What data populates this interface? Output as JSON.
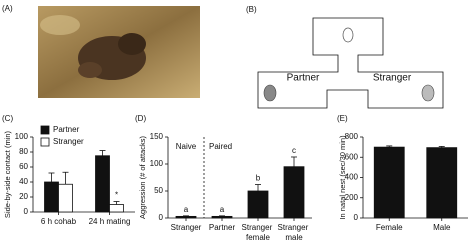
{
  "figure": {
    "panel_labels": [
      "(A)",
      "(B)",
      "(C)",
      "(D)",
      "(E)"
    ],
    "diagram": {
      "labels": [
        "Partner",
        "Stranger"
      ]
    }
  },
  "chart_data": [
    {
      "type": "bar",
      "y_label": "Side-by-side contact (min)",
      "categories": [
        "6 h cohab",
        "24 h mating"
      ],
      "series": [
        {
          "name": "Partner",
          "color": "#111111",
          "values": [
            40,
            75
          ],
          "errors": [
            12,
            7
          ]
        },
        {
          "name": "Stranger",
          "color": "#ffffff",
          "values": [
            37,
            10
          ],
          "errors": [
            16,
            4
          ],
          "markers": [
            null,
            "*"
          ]
        }
      ],
      "ylim": [
        0,
        100
      ],
      "yticks": [
        0,
        20,
        40,
        60,
        80,
        100
      ],
      "legend": "upper left"
    },
    {
      "type": "bar",
      "y_label": "Aggression (# of attacks)",
      "categories": [
        "Stranger",
        "Partner",
        "Stranger female",
        "Stranger male"
      ],
      "group_labels": [
        "Naive",
        "Paired"
      ],
      "series": [
        {
          "color": "#111111",
          "values": [
            3,
            3,
            50,
            95
          ],
          "errors": [
            1,
            1,
            12,
            18
          ],
          "markers": [
            "a",
            "a",
            "b",
            "c"
          ]
        }
      ],
      "ylim": [
        0,
        150
      ],
      "yticks": [
        0,
        50,
        100,
        150
      ]
    },
    {
      "type": "bar",
      "y_label": "In natal nest (sec/30 min)",
      "categories": [
        "Female",
        "Male"
      ],
      "series": [
        {
          "color": "#111111",
          "values": [
            700,
            695
          ],
          "errors": [
            12,
            12
          ]
        }
      ],
      "ylim": [
        0,
        800
      ],
      "yticks": [
        0,
        200,
        400,
        600,
        800
      ]
    }
  ]
}
